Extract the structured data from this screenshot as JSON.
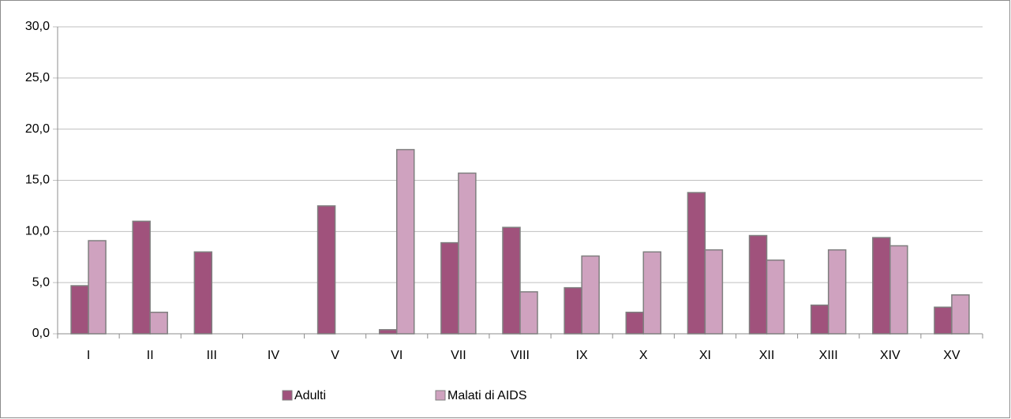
{
  "chart_data": {
    "type": "bar",
    "categories": [
      "I",
      "II",
      "III",
      "IV",
      "V",
      "VI",
      "VII",
      "VIII",
      "IX",
      "X",
      "XI",
      "XII",
      "XIII",
      "XIV",
      "XV"
    ],
    "series": [
      {
        "name": "Adulti",
        "color": "#a0527c",
        "values": [
          4.7,
          11.0,
          8.0,
          0,
          12.5,
          0.4,
          8.9,
          10.4,
          4.5,
          2.1,
          13.8,
          9.6,
          2.8,
          9.4,
          2.6
        ]
      },
      {
        "name": "Malati di AIDS",
        "color": "#cfa2bf",
        "values": [
          9.1,
          2.1,
          0,
          0,
          0,
          18.0,
          15.7,
          4.1,
          7.6,
          8.0,
          8.2,
          7.2,
          8.2,
          8.6,
          3.8
        ]
      }
    ],
    "ylim": [
      0,
      30
    ],
    "yticks": [
      {
        "value": 0,
        "label": "0,0"
      },
      {
        "value": 5,
        "label": "5,0"
      },
      {
        "value": 10,
        "label": "10,0"
      },
      {
        "value": 15,
        "label": "15,0"
      },
      {
        "value": 20,
        "label": "20,0"
      },
      {
        "value": 25,
        "label": "25,0"
      },
      {
        "value": 30,
        "label": "30,0"
      }
    ],
    "grid": true,
    "legend": "bottom"
  }
}
